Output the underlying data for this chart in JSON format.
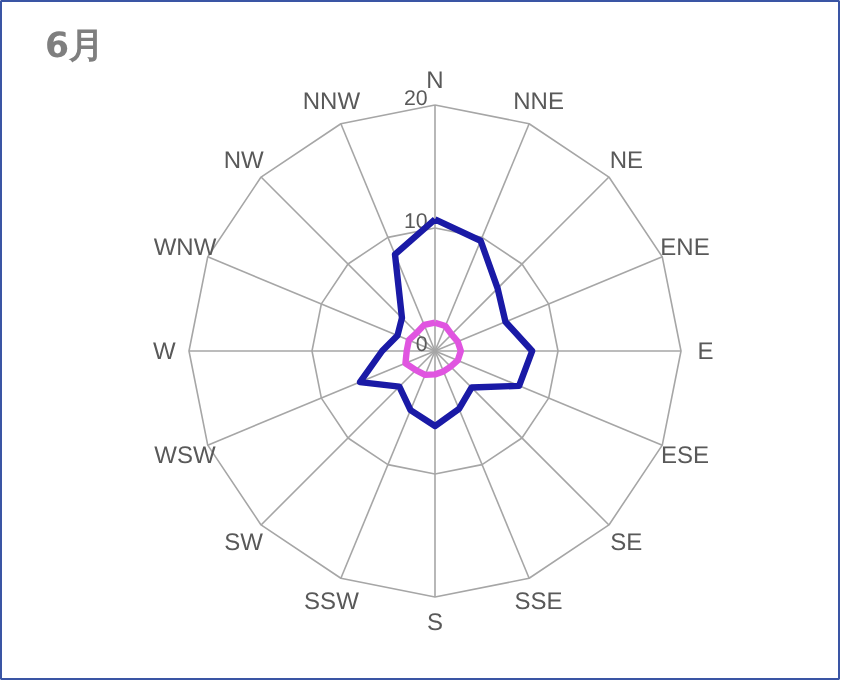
{
  "chart_data": {
    "type": "radar",
    "title": "6月",
    "categories": [
      "N",
      "NNE",
      "NE",
      "ENE",
      "E",
      "ESE",
      "SE",
      "SSE",
      "S",
      "SSW",
      "SW",
      "WSW",
      "W",
      "WNW",
      "NW",
      "NNW"
    ],
    "ylim": [
      0,
      20
    ],
    "yticks": [
      0,
      10,
      20
    ],
    "grid": true,
    "series": [
      {
        "color": "#1a1aa6",
        "values": [
          10.7,
          9.7,
          7.2,
          6.2,
          7.9,
          7.4,
          4.2,
          5.1,
          6.1,
          5.2,
          4.1,
          6.6,
          4.3,
          3.3,
          3.8,
          8.5
        ]
      },
      {
        "color": "#e055e0",
        "values": [
          2.3,
          2.2,
          1.9,
          2.0,
          2.1,
          2.0,
          1.8,
          1.8,
          1.9,
          2.1,
          2.2,
          2.6,
          2.3,
          2.3,
          2.1,
          2.3
        ]
      }
    ]
  }
}
